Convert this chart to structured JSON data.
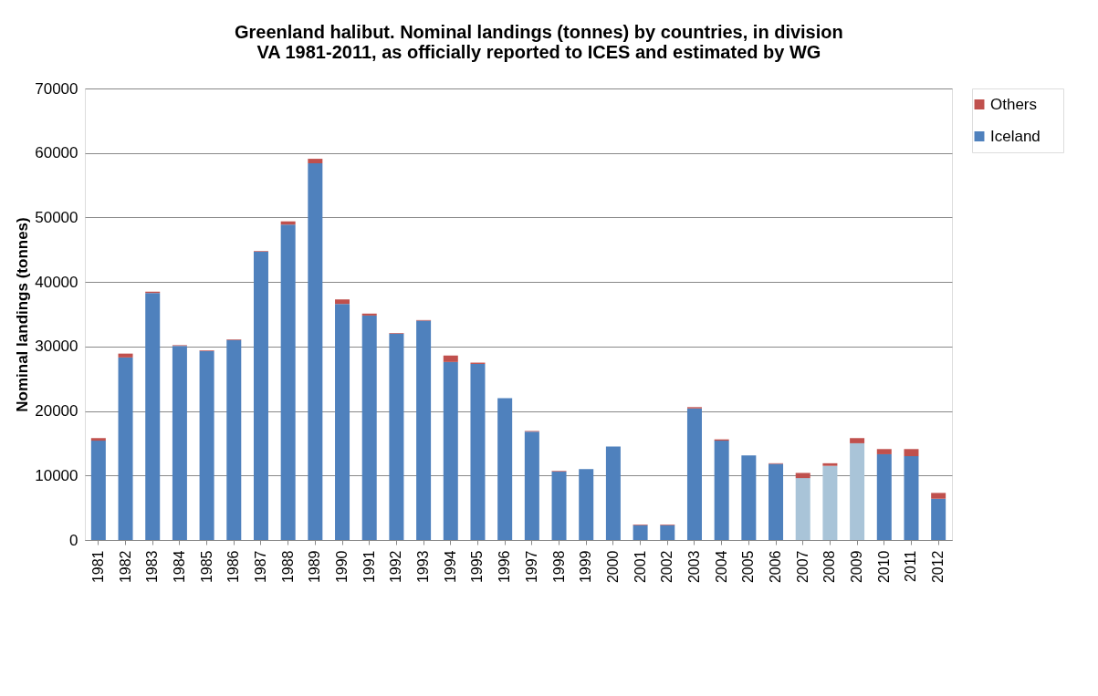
{
  "chart_data": {
    "type": "bar",
    "title": "Greenland halibut. Nominal landings (tonnes) by countries, in division VA 1981-2011, as officially reported to ICES and estimated by WG",
    "ylabel": "Nominal landings (tonnes)",
    "categories": [
      "1981",
      "1982",
      "1983",
      "1984",
      "1985",
      "1986",
      "1987",
      "1988",
      "1989",
      "1990",
      "1991",
      "1992",
      "1993",
      "1994",
      "1995",
      "1996",
      "1997",
      "1998",
      "1999",
      "2000",
      "2001",
      "2002",
      "2003",
      "2004",
      "2005",
      "2006",
      "2007",
      "2008",
      "2009",
      "2010",
      "2011",
      "2012"
    ],
    "stacked": true,
    "series": [
      {
        "name": "Iceland",
        "color": "#4f81bd",
        "colors": [
          "#4f81bd",
          "#4f81bd",
          "#4f81bd",
          "#4f81bd",
          "#4f81bd",
          "#4f81bd",
          "#4f81bd",
          "#4f81bd",
          "#4f81bd",
          "#4f81bd",
          "#4f81bd",
          "#4f81bd",
          "#4f81bd",
          "#4f81bd",
          "#4f81bd",
          "#4f81bd",
          "#4f81bd",
          "#4f81bd",
          "#4f81bd",
          "#4f81bd",
          "#4f81bd",
          "#4f81bd",
          "#4f81bd",
          "#4f81bd",
          "#4f81bd",
          "#4f81bd",
          "#a9c4d8",
          "#a9c4d8",
          "#a9c4d8",
          "#4f81bd",
          "#4f81bd",
          "#4f81bd"
        ],
        "values": [
          15400,
          28300,
          38300,
          30100,
          29300,
          31000,
          44700,
          48900,
          58400,
          36600,
          34800,
          32000,
          34000,
          27600,
          27300,
          22000,
          16800,
          10600,
          11000,
          14500,
          2300,
          2300,
          20400,
          15400,
          13100,
          11800,
          9600,
          11500,
          15000,
          13300,
          13000,
          6400
        ]
      },
      {
        "name": "Others",
        "color": "#c0504d",
        "values": [
          400,
          600,
          200,
          100,
          100,
          100,
          100,
          500,
          700,
          700,
          300,
          100,
          100,
          1000,
          200,
          null,
          100,
          100,
          null,
          null,
          100,
          100,
          200,
          200,
          null,
          100,
          800,
          400,
          800,
          800,
          1100,
          900
        ]
      }
    ],
    "ylim": [
      0,
      70000
    ],
    "yticks": [
      0,
      10000,
      20000,
      30000,
      40000,
      50000,
      60000,
      70000
    ],
    "grid": "y",
    "legend": "right"
  }
}
